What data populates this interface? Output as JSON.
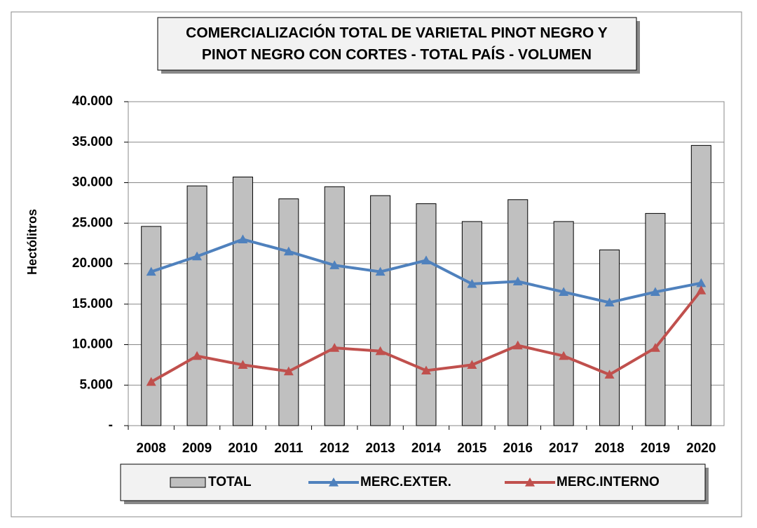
{
  "chart_data": {
    "type": "bar",
    "title": [
      "COMERCIALIZACIÓN TOTAL DE VARIETAL PINOT NEGRO Y",
      "PINOT NEGRO CON CORTES - TOTAL PAÍS - VOLUMEN"
    ],
    "y_label": "Hectólitros",
    "categories": [
      "2008",
      "2009",
      "2010",
      "2011",
      "2012",
      "2013",
      "2014",
      "2015",
      "2016",
      "2017",
      "2018",
      "2019",
      "2020"
    ],
    "series": [
      {
        "name": "TOTAL",
        "type": "bar",
        "color": "#c0c0c0",
        "values": [
          24600,
          29600,
          30700,
          28000,
          29500,
          28400,
          27400,
          25200,
          27900,
          25200,
          21700,
          26200,
          34600
        ]
      },
      {
        "name": "MERC.EXTER.",
        "type": "line",
        "color": "#4f81bd",
        "values": [
          19000,
          20900,
          23000,
          21500,
          19800,
          19000,
          20400,
          17500,
          17800,
          16500,
          15200,
          16500,
          17600
        ]
      },
      {
        "name": "MERC.INTERNO",
        "type": "line",
        "color": "#c0504d",
        "values": [
          5400,
          8600,
          7500,
          6700,
          9600,
          9200,
          6800,
          7500,
          9900,
          8600,
          6300,
          9600,
          16700
        ]
      }
    ],
    "ylim": [
      0,
      40000
    ],
    "yticks": [
      {
        "value": 0,
        "label": "-"
      },
      {
        "value": 5000,
        "label": "5.000"
      },
      {
        "value": 10000,
        "label": "10.000"
      },
      {
        "value": 15000,
        "label": "15.000"
      },
      {
        "value": 20000,
        "label": "20.000"
      },
      {
        "value": 25000,
        "label": "25.000"
      },
      {
        "value": 30000,
        "label": "30.000"
      },
      {
        "value": 35000,
        "label": "35.000"
      },
      {
        "value": 40000,
        "label": "40.000"
      }
    ],
    "grid": true,
    "legend": "bottom"
  }
}
